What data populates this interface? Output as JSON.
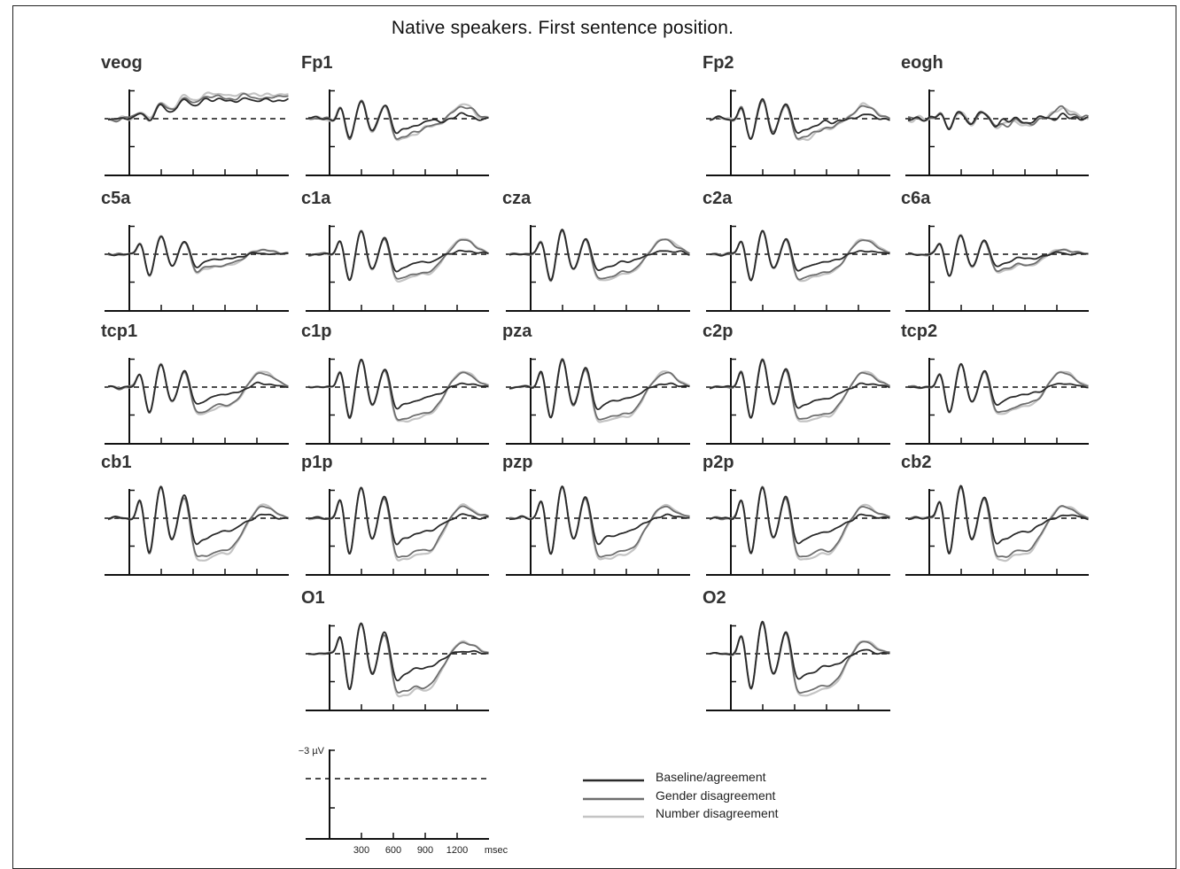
{
  "figure": {
    "title": "Native speakers. First sentence position."
  },
  "chart_data": {
    "type": "line",
    "title": "Native speakers. First sentence position.",
    "x_unit": "msec",
    "x_ticks": [
      300,
      600,
      900,
      1200
    ],
    "xlim": [
      -200,
      1500
    ],
    "y_scale_label": "−3 µV",
    "y_scale_value": -3,
    "negative_up": true,
    "series": [
      {
        "name": "Baseline/agreement",
        "color": "#2a2a2a"
      },
      {
        "name": "Gender disagreement",
        "color": "#6e6e6e"
      },
      {
        "name": "Number disagreement",
        "color": "#c4c4c4"
      }
    ],
    "channels": [
      {
        "name": "veog",
        "row": 0,
        "col": 0,
        "profile": "drift"
      },
      {
        "name": "Fp1",
        "row": 0,
        "col": 1,
        "profile": "frontal"
      },
      {
        "name": "Fp2",
        "row": 0,
        "col": 3,
        "profile": "frontal"
      },
      {
        "name": "eogh",
        "row": 0,
        "col": 4,
        "profile": "noisy"
      },
      {
        "name": "c5a",
        "row": 1,
        "col": 0,
        "profile": "small"
      },
      {
        "name": "c1a",
        "row": 1,
        "col": 1,
        "profile": "medium"
      },
      {
        "name": "cza",
        "row": 1,
        "col": 2,
        "profile": "medium"
      },
      {
        "name": "c2a",
        "row": 1,
        "col": 3,
        "profile": "medium"
      },
      {
        "name": "c6a",
        "row": 1,
        "col": 4,
        "profile": "small"
      },
      {
        "name": "tcp1",
        "row": 2,
        "col": 0,
        "profile": "medium"
      },
      {
        "name": "c1p",
        "row": 2,
        "col": 1,
        "profile": "large"
      },
      {
        "name": "pza",
        "row": 2,
        "col": 2,
        "profile": "large"
      },
      {
        "name": "c2p",
        "row": 2,
        "col": 3,
        "profile": "large"
      },
      {
        "name": "tcp2",
        "row": 2,
        "col": 4,
        "profile": "medium"
      },
      {
        "name": "cb1",
        "row": 3,
        "col": 0,
        "profile": "posterior"
      },
      {
        "name": "p1p",
        "row": 3,
        "col": 1,
        "profile": "posterior"
      },
      {
        "name": "pzp",
        "row": 3,
        "col": 2,
        "profile": "posterior"
      },
      {
        "name": "p2p",
        "row": 3,
        "col": 3,
        "profile": "posterior"
      },
      {
        "name": "cb2",
        "row": 3,
        "col": 4,
        "profile": "posterior"
      },
      {
        "name": "O1",
        "row": 4,
        "col": 1,
        "profile": "posterior"
      },
      {
        "name": "O2",
        "row": 4,
        "col": 3,
        "profile": "posterior"
      }
    ]
  }
}
